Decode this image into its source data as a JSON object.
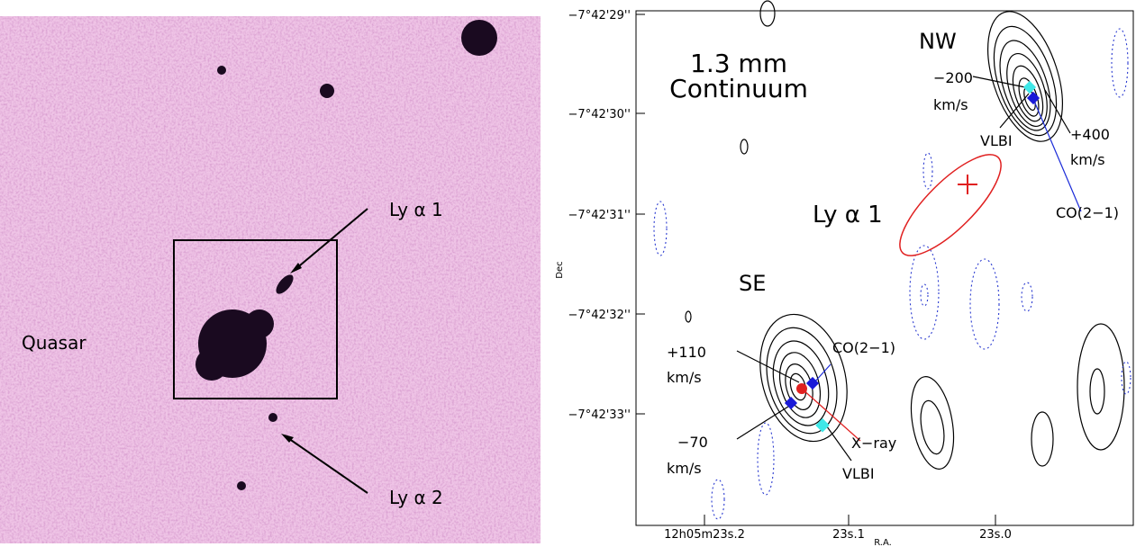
{
  "left_panel": {
    "labels": {
      "quasar": "Quasar",
      "lya1": "Ly α 1",
      "lya2": "Ly α 2"
    }
  },
  "right_panel": {
    "title": [
      "1.3 mm",
      "Continuum"
    ],
    "ylabel": "Dec",
    "xlabel": "R.A.",
    "yticks": [
      "−7°42'29''",
      "−7°42'30''",
      "−7°42'31''",
      "−7°42'32''",
      "−7°42'33''"
    ],
    "xticks": [
      "12h05m23s.2",
      "23s.1",
      "23s.0"
    ],
    "nw": {
      "name": "NW",
      "vel_blue": "−200",
      "unit_blue": "km/s",
      "vlbi": "VLBI",
      "vel_red": "+400",
      "unit_red": "km/s",
      "co": "CO(2−1)"
    },
    "lya1": "Ly α 1",
    "se": {
      "name": "SE",
      "vel_red": "+110",
      "unit_red": "km/s",
      "co": "CO(2−1)",
      "vel_blue": "−70",
      "unit_blue": "km/s",
      "xray": "X−ray",
      "vlbi": "VLBI"
    }
  }
}
